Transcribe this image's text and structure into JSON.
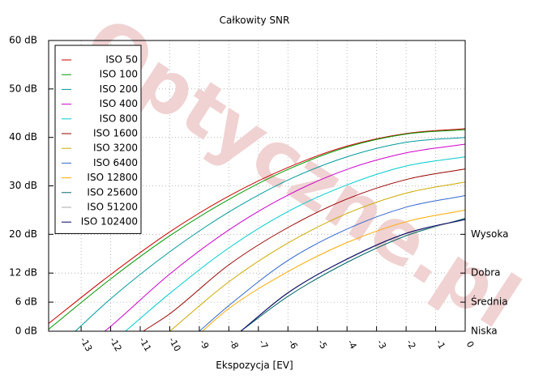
{
  "chart_data": {
    "type": "line",
    "title": "Całkowity SNR",
    "xlabel": "Ekspozycja [EV]",
    "ylabel": "",
    "xlim": [
      -14.1,
      0
    ],
    "ylim": [
      0,
      60
    ],
    "x_ticks": [
      "-13",
      "-12",
      "-11",
      "-10",
      "-9",
      "-8",
      "-7",
      "-6",
      "-5",
      "-4",
      "-3",
      "-2",
      "-1",
      "0"
    ],
    "y_ticks": [
      "0 dB",
      "6 dB",
      "12 dB",
      "20 dB",
      "30 dB",
      "40 dB",
      "50 dB",
      "60 dB"
    ],
    "grid": true,
    "legend_position": "top-left",
    "quality_levels": [
      {
        "label": "Wysoka",
        "value": 20
      },
      {
        "label": "Dobra",
        "value": 12
      },
      {
        "label": "Średnia",
        "value": 6
      },
      {
        "label": "Niska",
        "value": 0
      }
    ],
    "watermark": "Optyczne.pl",
    "series": [
      {
        "name": "ISO 50",
        "color": "#cc0000",
        "x": [
          -14.1,
          -12,
          -10,
          -8,
          -6,
          -4,
          -2,
          0
        ],
        "y": [
          1.6,
          11.7,
          20.5,
          27.9,
          33.8,
          38.2,
          40.8,
          41.8
        ]
      },
      {
        "name": "ISO 100",
        "color": "#009900",
        "x": [
          -14.1,
          -12,
          -10,
          -8,
          -6,
          -4,
          -2,
          0
        ],
        "y": [
          0.4,
          10.8,
          19.7,
          27.2,
          33.4,
          38.0,
          40.7,
          41.6
        ]
      },
      {
        "name": "ISO 200",
        "color": "#009999",
        "x": [
          -13.2,
          -12,
          -10,
          -8,
          -6,
          -4,
          -2,
          0
        ],
        "y": [
          0,
          6.7,
          16.4,
          24.6,
          31.2,
          36.0,
          39.0,
          40.0
        ]
      },
      {
        "name": "ISO 400",
        "color": "#cc00cc",
        "x": [
          -12.2,
          -12,
          -10,
          -8,
          -6,
          -4,
          -2,
          0
        ],
        "y": [
          0,
          1.0,
          11.8,
          20.9,
          28.1,
          33.4,
          36.8,
          38.6
        ]
      },
      {
        "name": "ISO 800",
        "color": "#00cccc",
        "x": [
          -11.5,
          -10,
          -8,
          -6,
          -4,
          -2,
          0
        ],
        "y": [
          0,
          7.8,
          17.2,
          24.7,
          30.2,
          34.1,
          36.0
        ]
      },
      {
        "name": "ISO 1600",
        "color": "#990000",
        "x": [
          -10.9,
          -10,
          -8,
          -6,
          -4,
          -2,
          0
        ],
        "y": [
          0,
          3.6,
          13.7,
          21.4,
          27.3,
          31.3,
          33.5
        ]
      },
      {
        "name": "ISO 3200",
        "color": "#ccaa00",
        "x": [
          -10.0,
          -8,
          -6,
          -4,
          -2,
          0
        ],
        "y": [
          0,
          10.2,
          18.2,
          24.3,
          28.5,
          30.8
        ]
      },
      {
        "name": "ISO 6400",
        "color": "#3366cc",
        "x": [
          -9.0,
          -8,
          -6,
          -4,
          -2,
          0
        ],
        "y": [
          0,
          5.3,
          14.6,
          21.1,
          25.6,
          28.0
        ]
      },
      {
        "name": "ISO 12800",
        "color": "#ffaa00",
        "x": [
          -8.9,
          -8,
          -6,
          -4,
          -2,
          0
        ],
        "y": [
          0,
          4.7,
          12.3,
          18.3,
          22.6,
          25.0
        ]
      },
      {
        "name": "ISO 25600",
        "color": "#006666",
        "x": [
          -7.6,
          -6,
          -4,
          -2,
          0
        ],
        "y": [
          0,
          7.2,
          14.2,
          19.7,
          23.3
        ]
      },
      {
        "name": "ISO 51200",
        "color": "#aaaaaa",
        "x": [
          -7.6,
          -6,
          -4,
          -2,
          0
        ],
        "y": [
          0,
          8.0,
          14.8,
          20.1,
          23.0
        ]
      },
      {
        "name": "ISO 102400",
        "color": "#000066",
        "x": [
          -7.6,
          -6,
          -4,
          -2,
          0
        ],
        "y": [
          0,
          7.9,
          14.9,
          20.2,
          23.1
        ]
      }
    ]
  }
}
